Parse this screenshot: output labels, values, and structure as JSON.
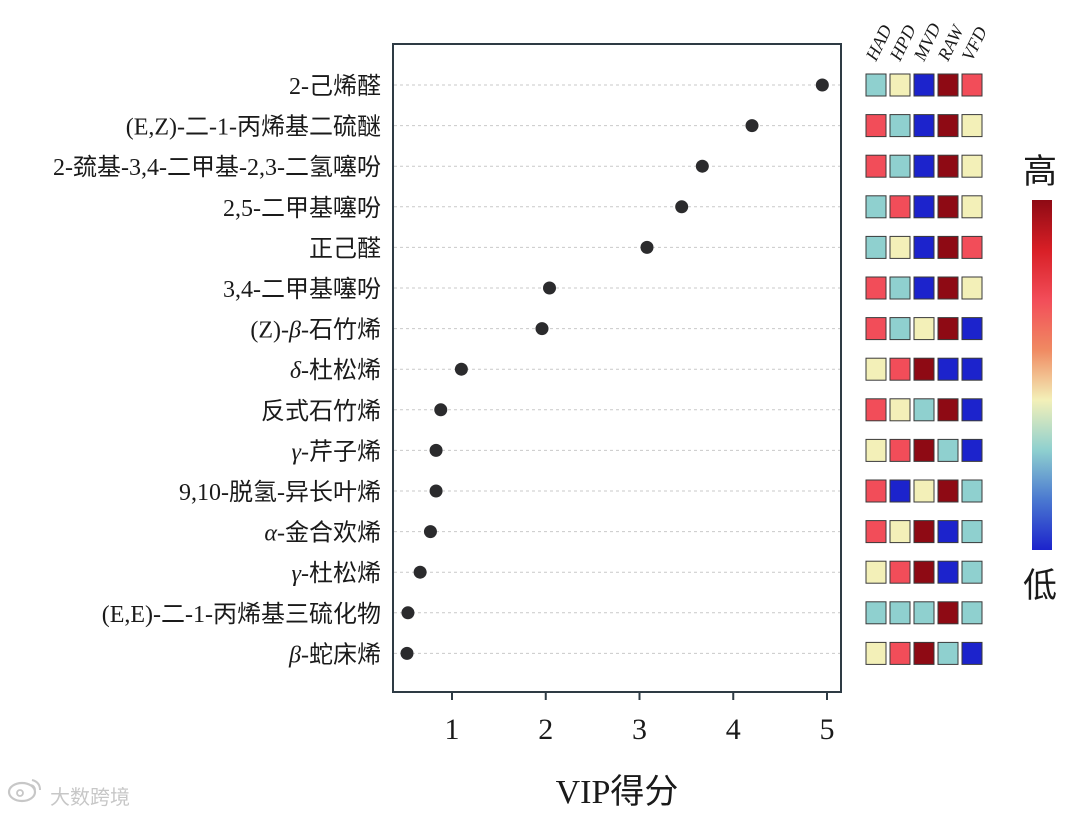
{
  "chart_data": {
    "type": "scatter",
    "title": "",
    "xlabel": "VIP得分",
    "ylabel": "",
    "xlim": [
      0.45,
      5.2
    ],
    "xticks": [
      1,
      2,
      3,
      4,
      5
    ],
    "grid": "horizontal-dashed",
    "categories": [
      {
        "pre": "",
        "greek": "",
        "post": "2-己烯醛"
      },
      {
        "pre": "",
        "greek": "",
        "post": "(E,Z)-二-1-丙烯基二硫醚"
      },
      {
        "pre": "",
        "greek": "",
        "post": "2-巯基-3,4-二甲基-2,3-二氢噻吩"
      },
      {
        "pre": "",
        "greek": "",
        "post": "2,5-二甲基噻吩"
      },
      {
        "pre": "",
        "greek": "",
        "post": "正己醛"
      },
      {
        "pre": "",
        "greek": "",
        "post": "3,4-二甲基噻吩"
      },
      {
        "pre": "(Z)-",
        "greek": "β",
        "post": "-石竹烯"
      },
      {
        "pre": "",
        "greek": "δ",
        "post": "-杜松烯"
      },
      {
        "pre": "",
        "greek": "",
        "post": "反式石竹烯"
      },
      {
        "pre": "",
        "greek": "γ",
        "post": "-芹子烯"
      },
      {
        "pre": "",
        "greek": "",
        "post": "9,10-脱氢-异长叶烯"
      },
      {
        "pre": "",
        "greek": "α",
        "post": "-金合欢烯"
      },
      {
        "pre": "",
        "greek": "γ",
        "post": "-杜松烯"
      },
      {
        "pre": "",
        "greek": "",
        "post": "(E,E)-二-1-丙烯基三硫化物"
      },
      {
        "pre": "",
        "greek": "β",
        "post": "-蛇床烯"
      }
    ],
    "values": [
      4.95,
      4.2,
      3.67,
      3.45,
      3.08,
      2.04,
      1.96,
      1.1,
      0.88,
      0.83,
      0.83,
      0.77,
      0.66,
      0.53,
      0.52
    ],
    "heatmap": {
      "columns": [
        "HAD",
        "HPD",
        "MVD",
        "RAW",
        "VFD"
      ],
      "levels": [
        [
          2,
          3,
          0,
          5,
          4
        ],
        [
          4,
          2,
          0,
          5,
          3
        ],
        [
          4,
          2,
          0,
          5,
          3
        ],
        [
          2,
          4,
          0,
          5,
          3
        ],
        [
          2,
          3,
          0,
          5,
          4
        ],
        [
          4,
          2,
          0,
          5,
          3
        ],
        [
          4,
          2,
          3,
          5,
          0
        ],
        [
          3,
          4,
          5,
          0,
          0
        ],
        [
          4,
          3,
          2,
          5,
          0
        ],
        [
          3,
          4,
          5,
          2,
          0
        ],
        [
          4,
          0,
          3,
          5,
          2
        ],
        [
          4,
          3,
          5,
          0,
          2
        ],
        [
          3,
          4,
          5,
          0,
          2
        ],
        [
          2,
          2,
          2,
          5,
          2
        ],
        [
          3,
          4,
          5,
          2,
          0
        ]
      ],
      "palette": [
        "#1c23cc",
        "#6fa9d4",
        "#8fd0cf",
        "#f3f0b8",
        "#f24d59",
        "#8e0a14"
      ]
    },
    "legend": {
      "high": "高",
      "low": "低",
      "gradient": [
        "#8e0a14",
        "#d81f26",
        "#f24d59",
        "#f08a62",
        "#f3f0b8",
        "#8fd0cf",
        "#4a78d0",
        "#1c23cc"
      ]
    }
  },
  "watermark": {
    "icon": "weibo-like-logo-icon",
    "text": "大数跨境"
  },
  "colors": {
    "marker": "#2b2b2d",
    "frame": "#2e3b44",
    "grid": "#c9c9c9",
    "cell_border": "#3a3a3a",
    "text": "#1a1a1a"
  }
}
